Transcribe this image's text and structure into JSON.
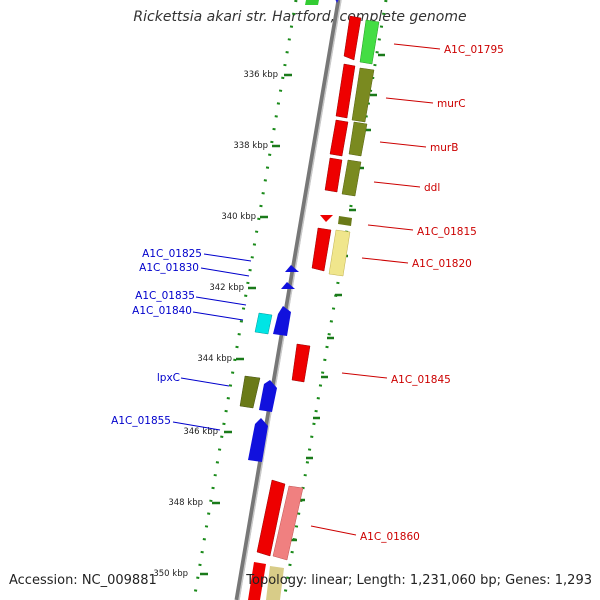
{
  "title": "Rickettsia akari str. Hartford, complete genome",
  "accession": "Accession: NC_009881",
  "topology": "Topology: linear; Length: 1,231,060 bp; Genes: 1,293",
  "colors": {
    "backbone": "#8a8a8a",
    "kbp_tick": "#1a7a1a",
    "forward_label": "#cc0000",
    "reverse_label": "#0000cc"
  },
  "kbp_ticks": [
    {
      "label": "336 kbp"
    },
    {
      "label": "338 kbp"
    },
    {
      "label": "340 kbp"
    },
    {
      "label": "342 kbp"
    },
    {
      "label": "344 kbp"
    },
    {
      "label": "346 kbp"
    },
    {
      "label": "348 kbp"
    },
    {
      "label": "350 kbp"
    }
  ],
  "genes_right": [
    {
      "label": "A1C_01795"
    },
    {
      "label": "murC"
    },
    {
      "label": "murB"
    },
    {
      "label": "ddl"
    },
    {
      "label": "A1C_01815"
    },
    {
      "label": "A1C_01820"
    },
    {
      "label": "A1C_01845"
    },
    {
      "label": "A1C_01860"
    }
  ],
  "genes_left": [
    {
      "label": "A1C_01825"
    },
    {
      "label": "A1C_01830"
    },
    {
      "label": "A1C_01835"
    },
    {
      "label": "A1C_01840"
    },
    {
      "label": "lpxC"
    },
    {
      "label": "A1C_01855"
    }
  ]
}
